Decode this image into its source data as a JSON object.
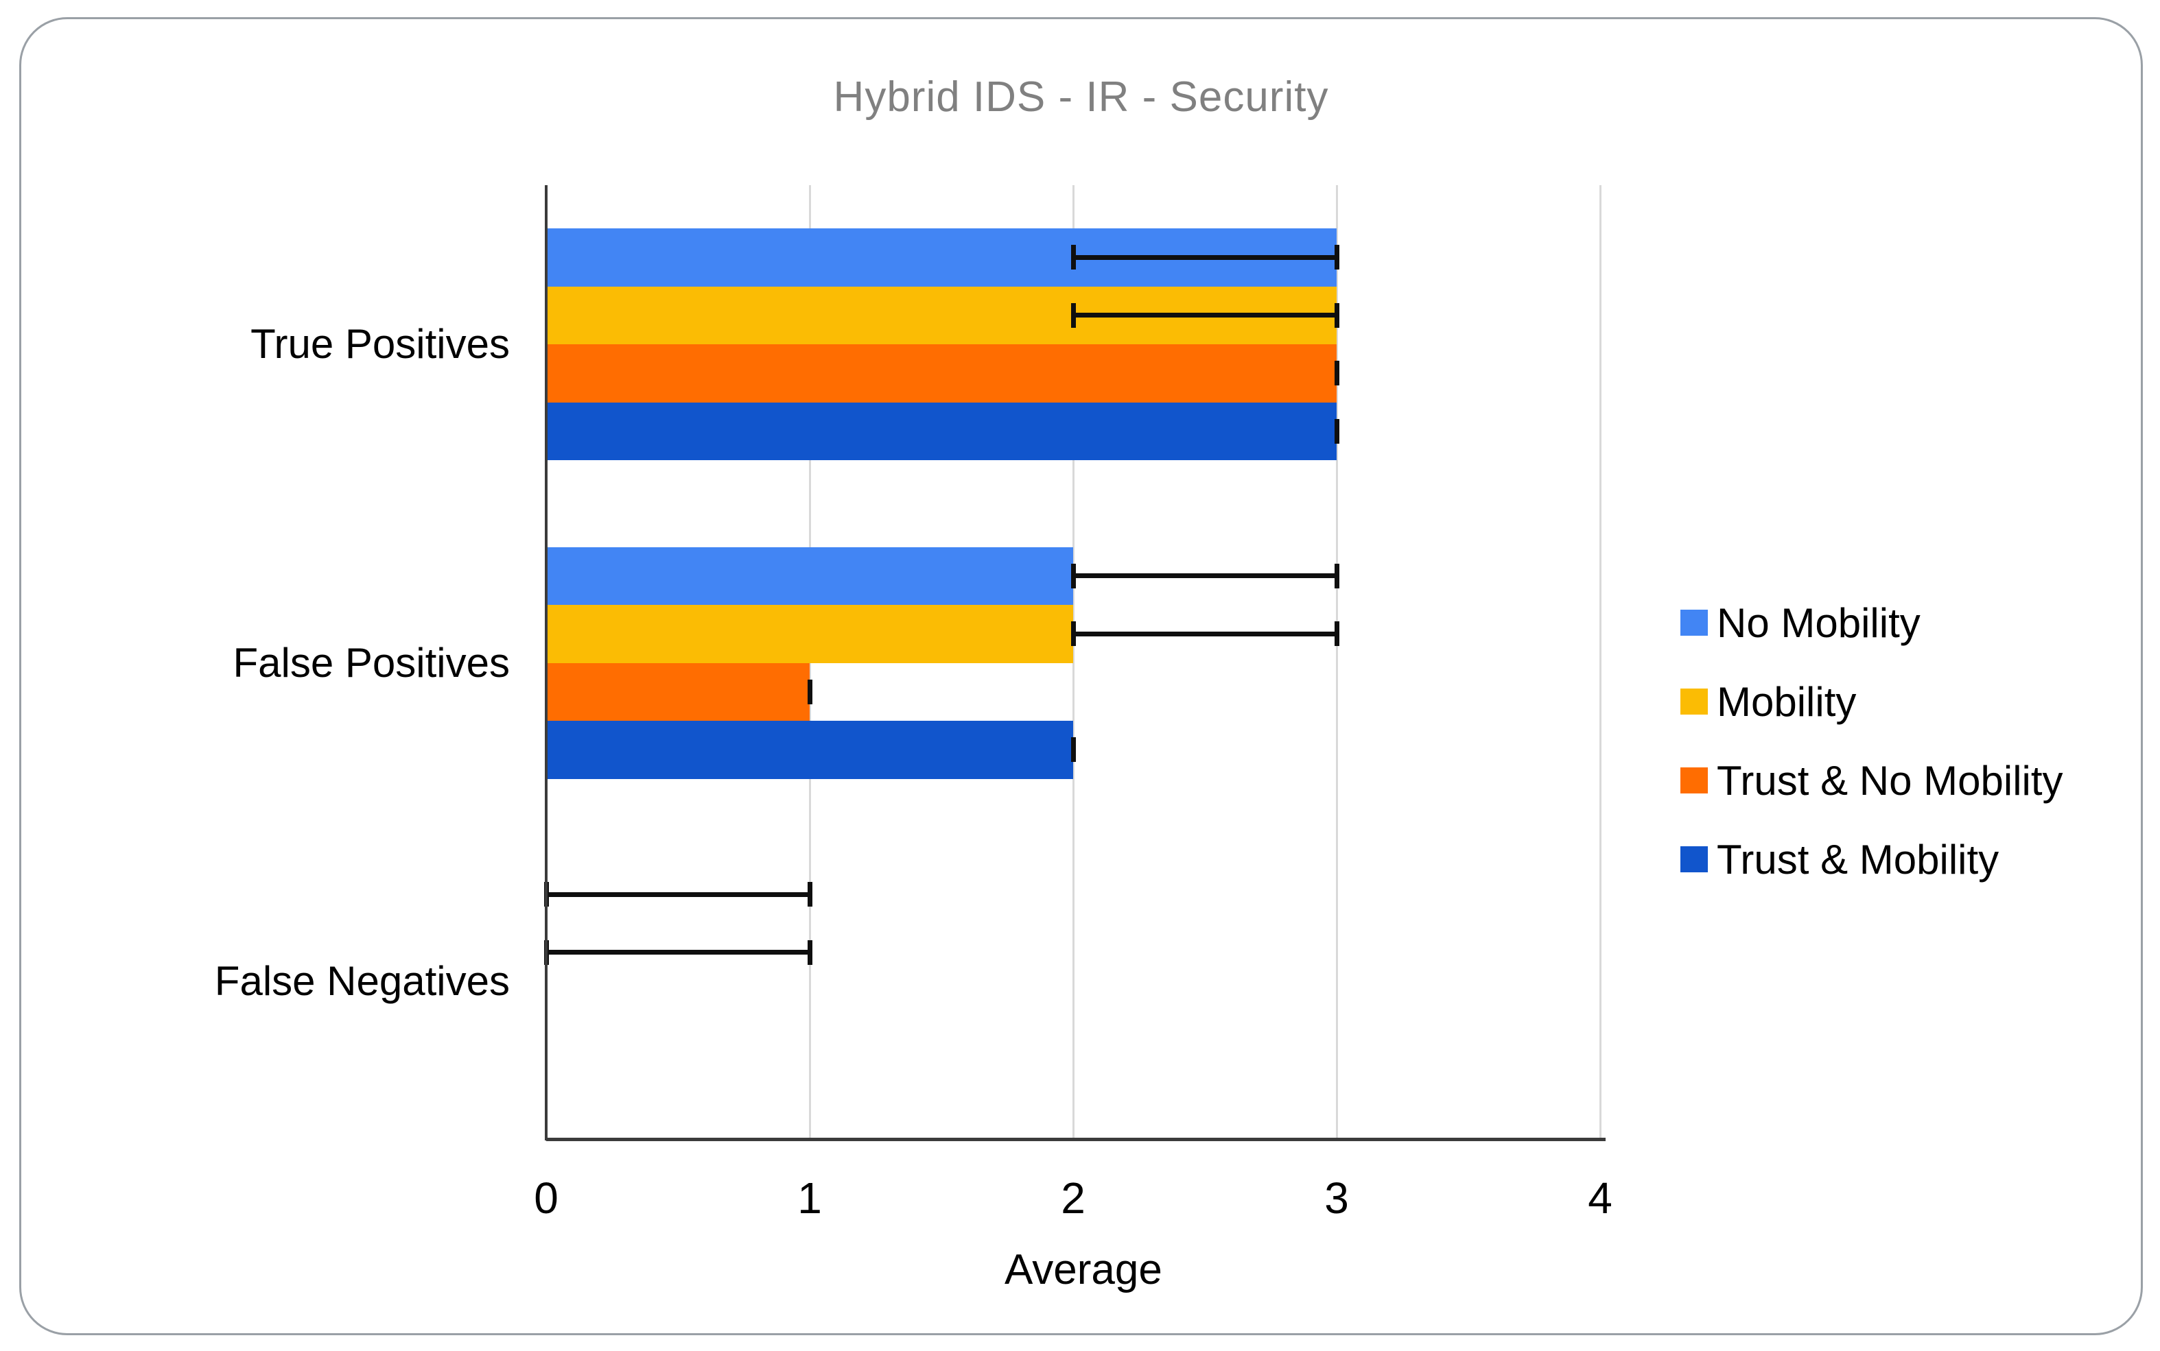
{
  "chart_data": {
    "type": "bar",
    "orientation": "horizontal",
    "title": "Hybrid IDS - IR - Security",
    "title_color": "#808080",
    "xlabel": "Average",
    "categories": [
      "True Positives",
      "False Positives",
      "False Negatives"
    ],
    "x_ticks": [
      0,
      1,
      2,
      3,
      4
    ],
    "xlim": [
      0,
      4
    ],
    "grid": true,
    "legend_position": "right",
    "series": [
      {
        "name": "No Mobility",
        "color": "#4285F4",
        "values": [
          3,
          2,
          0
        ],
        "error_whiskers": [
          [
            2,
            3
          ],
          [
            2,
            3
          ],
          [
            0,
            1
          ]
        ]
      },
      {
        "name": "Mobility",
        "color": "#FBBC04",
        "values": [
          3,
          2,
          0
        ],
        "error_whiskers": [
          [
            2,
            3
          ],
          [
            2,
            3
          ],
          [
            0,
            1
          ]
        ]
      },
      {
        "name": "Trust & No Mobility",
        "color": "#FF6D01",
        "values": [
          3,
          1,
          0
        ],
        "error_whiskers": [
          [
            3,
            3
          ],
          [
            1,
            1
          ],
          null
        ]
      },
      {
        "name": "Trust & Mobility",
        "color": "#1155CC",
        "values": [
          3,
          2,
          0
        ],
        "error_whiskers": [
          [
            3,
            3
          ],
          [
            2,
            2
          ],
          null
        ]
      }
    ]
  }
}
